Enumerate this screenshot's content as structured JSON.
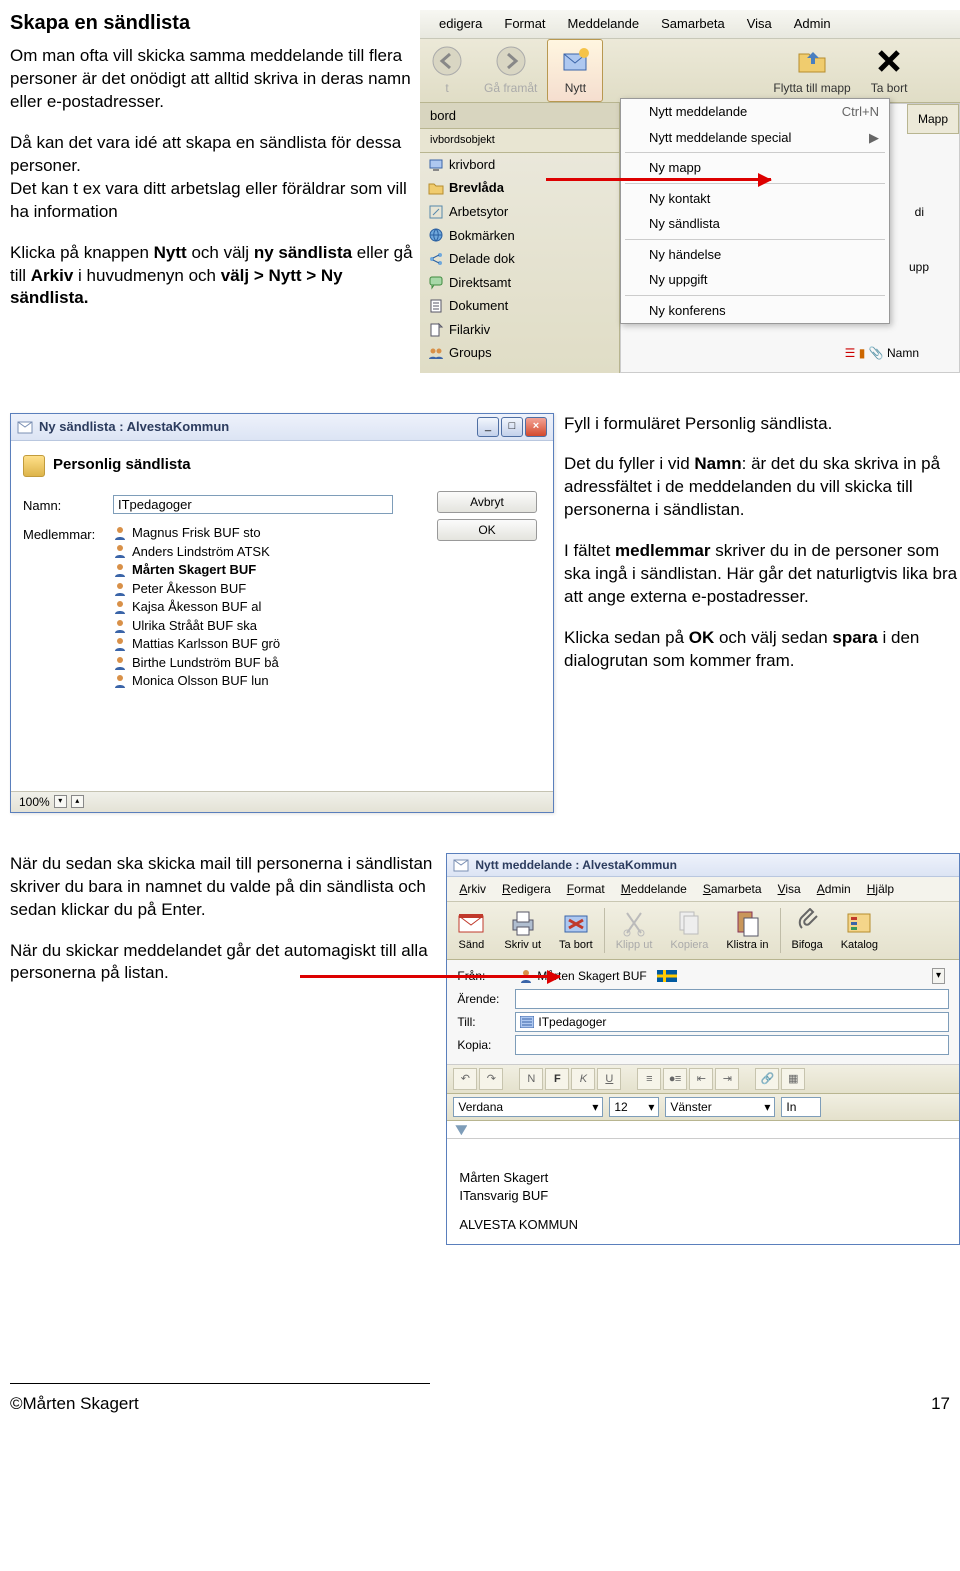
{
  "page": {
    "number": "17",
    "author": "©Mårten Skagert"
  },
  "section1": {
    "heading": "Skapa en sändlista",
    "para1": "Om man ofta vill skicka samma meddelande till flera personer är det onödigt att alltid skriva in deras namn eller e-postadresser.",
    "para2": "Då kan det vara idé att skapa en sändlista för dessa personer.",
    "para3": "Det kan t ex vara ditt arbetslag eller föräldrar som vill ha information",
    "para4a": "Klicka på knappen ",
    "para4b": " och välj ",
    "para4c": " eller gå till ",
    "para4d": " i huvudmenyn och ",
    "bold_nytt": "Nytt",
    "bold_ny_sandlista": "ny sändlista",
    "bold_arkiv": "Arkiv",
    "bold_valj": "välj > Nytt > Ny sändlista."
  },
  "ss1": {
    "menu": [
      "edigera",
      "Format",
      "Meddelande",
      "Samarbeta",
      "Visa",
      "Admin"
    ],
    "toolbar": {
      "back_label": "t",
      "forward_label": "Gå framåt",
      "new_label": "Nytt",
      "move_label": "Flytta till mapp",
      "delete_label": "Ta bort"
    },
    "sidebar_label": "bord",
    "sidebar_sub": "ivbordsobjekt",
    "sidebar_items": [
      {
        "label": "krivbord",
        "icon": "desktop"
      },
      {
        "label": "Brevlåda",
        "icon": "folder",
        "bold": true
      },
      {
        "label": "Arbetsytor",
        "icon": "link"
      },
      {
        "label": "Bokmärken",
        "icon": "globe"
      },
      {
        "label": "Delade dok",
        "icon": "share"
      },
      {
        "label": "Direktsamt",
        "icon": "chat"
      },
      {
        "label": "Dokument",
        "icon": "doc"
      },
      {
        "label": "Filarkiv",
        "icon": "file"
      },
      {
        "label": "Groups",
        "icon": "group"
      }
    ],
    "submenu": [
      {
        "label": "Nytt meddelande",
        "right": "Ctrl+N"
      },
      {
        "label": "Nytt meddelande special",
        "right": "▶"
      },
      {
        "sep": true
      },
      {
        "label": "Ny mapp"
      },
      {
        "sep": true
      },
      {
        "label": "Ny kontakt"
      },
      {
        "label": "Ny sändlista"
      },
      {
        "sep": true
      },
      {
        "label": "Ny händelse"
      },
      {
        "label": "Ny uppgift"
      },
      {
        "sep": true
      },
      {
        "label": "Ny konferens"
      }
    ],
    "right": {
      "mapp": "Mapp",
      "di": "di",
      "upp": "upp",
      "namn_label": "Namn"
    }
  },
  "section2": {
    "p1": "Fyll i formuläret Personlig sändlista.",
    "p2a": "Det du fyller i vid ",
    "p2name": "Namn",
    "p2b": ": är det du ska skriva in på adressfältet i de meddelanden du vill skicka till personerna i sändlistan.",
    "p3a": "I fältet ",
    "p3med": "medlemmar",
    "p3b": " skriver du in de personer som ska ingå i sändlistan. Här går det naturligtvis lika bra att ange externa e-postadresser.",
    "p4a": "Klicka sedan på ",
    "p4ok": "OK",
    "p4b": " och välj sedan ",
    "p4save": "spara",
    "p4c": " i den dialogrutan som kommer fram."
  },
  "dlg": {
    "title": "Ny sändlista : AlvestaKommun",
    "heading": "Personlig sändlista",
    "namn_label": "Namn:",
    "namn_value": "ITpedagoger",
    "medlemmar_label": "Medlemmar:",
    "members": [
      "Magnus Frisk BUF sto",
      "Anders Lindström ATSK",
      "Mårten Skagert BUF",
      "Peter Åkesson BUF",
      "Kajsa Åkesson BUF al",
      "Ulrika Strååt BUF ska",
      "Mattias Karlsson BUF grö",
      "Birthe Lundström BUF bå",
      "Monica Olsson BUF lun"
    ],
    "bold_members": [
      "Mårten Skagert BUF"
    ],
    "btn_cancel": "Avbryt",
    "btn_ok": "OK",
    "zoom": "100%"
  },
  "section3": {
    "p1": "När du sedan ska skicka mail till personerna i sändlistan skriver du bara in namnet du valde på din sändlista och sedan klickar du på Enter.",
    "p2": "När du skickar meddelandet går det automagiskt till alla personerna på listan."
  },
  "msg": {
    "title": "Nytt meddelande : AlvestaKommun",
    "menu": [
      "Arkiv",
      "Redigera",
      "Format",
      "Meddelande",
      "Samarbeta",
      "Visa",
      "Admin",
      "Hjälp"
    ],
    "toolbar": [
      "Sänd",
      "Skriv ut",
      "Ta bort",
      "Klipp ut",
      "Kopiera",
      "Klistra in",
      "Bifoga",
      "Katalog"
    ],
    "fran_label": "Från:",
    "fran_value": "Mårten Skagert BUF",
    "arende_label": "Ärende:",
    "till_label": "Till:",
    "till_value": "ITpedagoger",
    "kopia_label": "Kopia:",
    "font": "Verdana",
    "size": "12",
    "align": "Vänster",
    "align2": "In",
    "sig1": "Mårten Skagert",
    "sig2": "ITansvarig BUF",
    "sig3": "ALVESTA KOMMUN"
  },
  "colors": {
    "xp_gradient_top": "#ece9d8",
    "xp_gradient_bot": "#e0ddc6",
    "xp_border": "#b8b590",
    "blue_border": "#5a7fbc",
    "input_border": "#7e9db9",
    "red": "#d00"
  }
}
